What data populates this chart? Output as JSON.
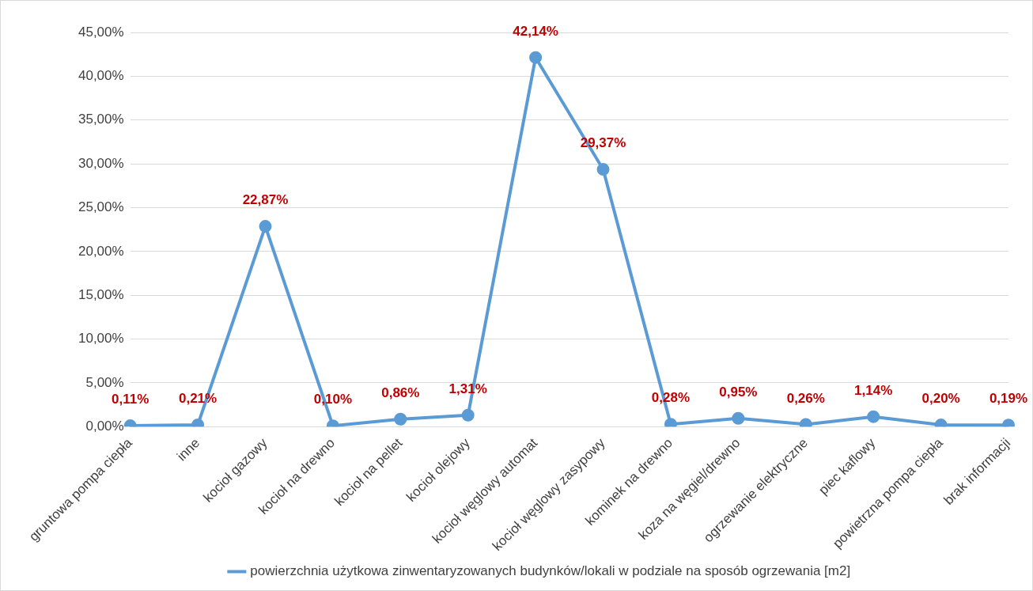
{
  "chart_data": {
    "type": "line",
    "categories": [
      "gruntowa pompa ciepła",
      "inne",
      "kocioł gazowy",
      "kocioł na drewno",
      "kocioł na pellet",
      "kocioł olejowy",
      "kocioł węglowy automat",
      "kocioł węglowy zasypowy",
      "kominek na drewno",
      "koza na węgiel/drewno",
      "ogrzewanie elektryczne",
      "piec kaflowy",
      "powietrzna pompa ciepła",
      "brak informacji"
    ],
    "series": [
      {
        "name": "powierzchnia użytkowa zinwentaryzowanych budynków/lokali w podziale na sposób ogrzewania [m2]",
        "color": "#5b9bd5",
        "values": [
          0.11,
          0.21,
          22.87,
          0.1,
          0.86,
          1.31,
          42.14,
          29.37,
          0.28,
          0.95,
          0.26,
          1.14,
          0.2,
          0.19
        ],
        "value_labels": [
          "0,11%",
          "0,21%",
          "22,87%",
          "0,10%",
          "0,86%",
          "1,31%",
          "42,14%",
          "29,37%",
          "0,28%",
          "0,95%",
          "0,26%",
          "1,14%",
          "0,20%",
          "0,19%"
        ]
      }
    ],
    "ylim": [
      0,
      45
    ],
    "yticks": [
      {
        "value": 0,
        "label": "0,00%"
      },
      {
        "value": 5,
        "label": "5,00%"
      },
      {
        "value": 10,
        "label": "10,00%"
      },
      {
        "value": 15,
        "label": "15,00%"
      },
      {
        "value": 20,
        "label": "20,00%"
      },
      {
        "value": 25,
        "label": "25,00%"
      },
      {
        "value": 30,
        "label": "30,00%"
      },
      {
        "value": 35,
        "label": "35,00%"
      },
      {
        "value": 40,
        "label": "40,00%"
      },
      {
        "value": 45,
        "label": "45,00%"
      }
    ],
    "grid": "y",
    "legend": "bottom",
    "marker": "circle",
    "line_style": "solid"
  }
}
